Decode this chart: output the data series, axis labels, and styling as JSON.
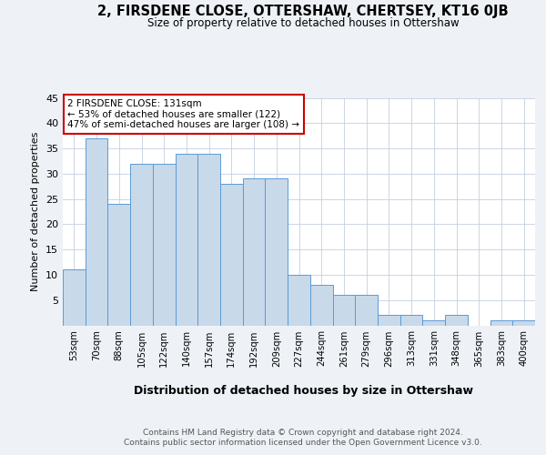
{
  "title": "2, FIRSDENE CLOSE, OTTERSHAW, CHERTSEY, KT16 0JB",
  "subtitle": "Size of property relative to detached houses in Ottershaw",
  "xlabel": "Distribution of detached houses by size in Ottershaw",
  "ylabel": "Number of detached properties",
  "footer_line1": "Contains HM Land Registry data © Crown copyright and database right 2024.",
  "footer_line2": "Contains public sector information licensed under the Open Government Licence v3.0.",
  "bar_labels": [
    "53sqm",
    "70sqm",
    "88sqm",
    "105sqm",
    "122sqm",
    "140sqm",
    "157sqm",
    "174sqm",
    "192sqm",
    "209sqm",
    "227sqm",
    "244sqm",
    "261sqm",
    "279sqm",
    "296sqm",
    "313sqm",
    "331sqm",
    "348sqm",
    "365sqm",
    "383sqm",
    "400sqm"
  ],
  "bar_values": [
    11,
    37,
    24,
    32,
    32,
    34,
    34,
    28,
    29,
    29,
    10,
    8,
    6,
    6,
    2,
    2,
    1,
    2,
    0,
    1,
    1
  ],
  "bar_color": "#c8d9ea",
  "bar_edge_color": "#5b9bd5",
  "annotation_text": "2 FIRSDENE CLOSE: 131sqm\n← 53% of detached houses are smaller (122)\n47% of semi-detached houses are larger (108) →",
  "annotation_box_edge_color": "#cc0000",
  "annotation_box_face_color": "#ffffff",
  "ylim": [
    0,
    45
  ],
  "yticks": [
    0,
    5,
    10,
    15,
    20,
    25,
    30,
    35,
    40,
    45
  ],
  "bg_color": "#eef2f7",
  "plot_bg_color": "#ffffff",
  "grid_color": "#c5cfe0"
}
